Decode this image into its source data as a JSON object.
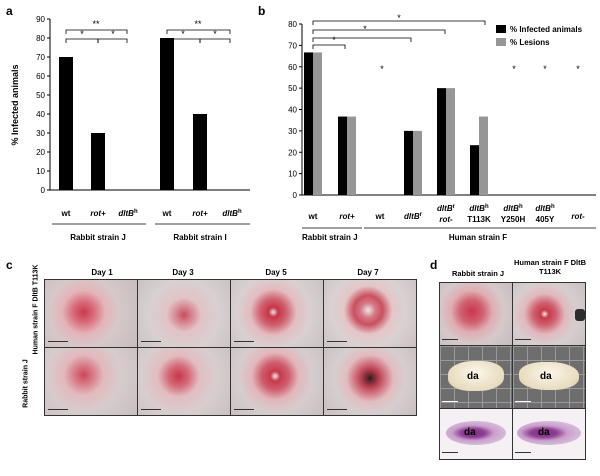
{
  "panels": {
    "a": "a",
    "b": "b",
    "c": "c",
    "d": "d"
  },
  "panel_a": {
    "ylabel": "% Infected animals",
    "yticks": [
      "0",
      "10",
      "20",
      "30",
      "40",
      "50",
      "60",
      "70",
      "80",
      "90"
    ],
    "tick_labels": [
      "wt",
      "rot+",
      "dltB",
      "wt",
      "rot+",
      "dltB"
    ],
    "superscripts": [
      "h",
      "h"
    ],
    "group_labels": [
      "Rabbit strain J",
      "Rabbit strain I"
    ],
    "sig": [
      "**",
      "*",
      "*",
      "**",
      "*",
      "*"
    ]
  },
  "panel_b": {
    "legend": [
      "% Infected animals",
      "% Lesions"
    ],
    "yticks": [
      "0",
      "10",
      "20",
      "30",
      "40",
      "50",
      "60",
      "70",
      "80"
    ],
    "sig": [
      "*",
      "*",
      "*",
      "*",
      "*",
      "*",
      "*",
      "*"
    ],
    "tick_labels": [
      "wt",
      "rot+",
      "wt",
      "dltB",
      "dltB",
      "rot-",
      "dltB",
      "T113K",
      "dltB",
      "Y250H",
      "dltB",
      "405Y",
      "rot-"
    ],
    "superscripts": [
      "r",
      "r",
      "h",
      "h",
      "h"
    ],
    "group_labels": [
      "Rabbit strain J",
      "Human strain F"
    ]
  },
  "panel_c": {
    "days": [
      "Day 1",
      "Day 3",
      "Day 5",
      "Day 7"
    ],
    "rows": [
      "Human strain F DltB T113K",
      "Rabbit strain J"
    ]
  },
  "panel_d": {
    "col1": "Rabbit strain J",
    "col2": "Human strain F DltB T113K",
    "da": [
      "da",
      "da",
      "da",
      "da"
    ]
  },
  "chart_data": [
    {
      "type": "bar",
      "categories": [
        "wt",
        "rot+",
        "dltBh",
        "wt",
        "rot+",
        "dltBh"
      ],
      "series": [
        {
          "values": [
            70,
            30,
            0,
            80,
            40,
            0
          ]
        }
      ],
      "ylabel": "% Infected animals",
      "ylim": [
        0,
        90
      ]
    },
    {
      "type": "bar",
      "categories": [
        "wt",
        "rot+",
        "wt",
        "dltBr",
        "dltBr rot-",
        "dltBh T113K",
        "dltBh Y250H",
        "dltBh 405Y",
        "rot-"
      ],
      "series": [
        {
          "name": "% Infected animals",
          "values": [
            66.7,
            36.7,
            0,
            30,
            50,
            23.3,
            0,
            0,
            0
          ]
        },
        {
          "name": "% Lesions",
          "values": [
            66.7,
            36.7,
            0,
            30,
            50,
            36.7,
            0,
            0,
            0
          ]
        }
      ],
      "ylim": [
        0,
        80
      ]
    }
  ],
  "colors": {
    "black": "#000000",
    "gray": "#969696"
  }
}
